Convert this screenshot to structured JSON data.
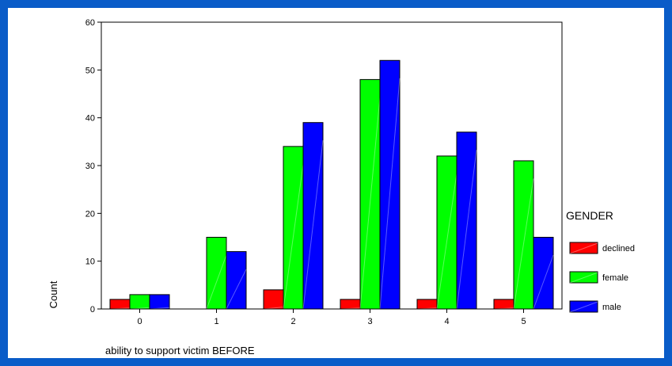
{
  "colors": {
    "frame": "#0a5cc8",
    "background": "#ffffff"
  },
  "chart_data": {
    "type": "bar",
    "title": "",
    "xlabel": "ability to support victim BEFORE",
    "ylabel": "Count",
    "ylim": [
      0,
      60
    ],
    "yticks": [
      0,
      10,
      20,
      30,
      40,
      50,
      60
    ],
    "categories": [
      "0",
      "1",
      "2",
      "3",
      "4",
      "5"
    ],
    "grid": false,
    "legend": {
      "title": "GENDER",
      "position": "right"
    },
    "series": [
      {
        "name": "declined",
        "color": "#ff0000",
        "values": [
          2,
          0,
          4,
          2,
          2,
          2
        ]
      },
      {
        "name": "female",
        "color": "#00ff00",
        "values": [
          3,
          15,
          34,
          48,
          32,
          31
        ]
      },
      {
        "name": "male",
        "color": "#0000ff",
        "values": [
          3,
          12,
          39,
          52,
          37,
          15
        ]
      }
    ]
  }
}
